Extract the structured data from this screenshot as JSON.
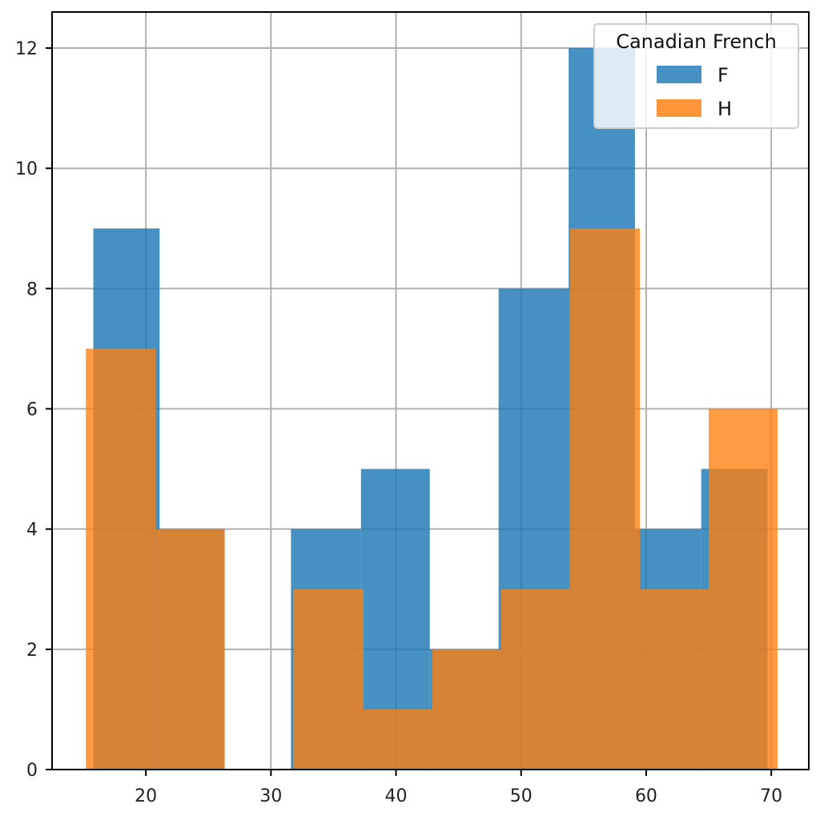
{
  "chart_data": {
    "type": "bar",
    "title": "",
    "xlabel": "",
    "ylabel": "",
    "xlim": [
      12.5,
      73
    ],
    "ylim": [
      0,
      12.6
    ],
    "xticks": [
      20,
      30,
      40,
      50,
      60,
      70
    ],
    "yticks": [
      0,
      2,
      4,
      6,
      8,
      10,
      12
    ],
    "grid": true,
    "legend": {
      "title": "Canadian French",
      "placement": "top-right"
    },
    "series": [
      {
        "name": "F",
        "color": "#1f77b4",
        "bins": [
          {
            "x0": 15.8,
            "x1": 21.1,
            "value": 9
          },
          {
            "x0": 21.1,
            "x1": 26.3,
            "value": 4
          },
          {
            "x0": 26.3,
            "x1": 31.6,
            "value": 0
          },
          {
            "x0": 31.6,
            "x1": 37.2,
            "value": 4
          },
          {
            "x0": 37.2,
            "x1": 42.7,
            "value": 5
          },
          {
            "x0": 42.7,
            "x1": 48.2,
            "value": 2
          },
          {
            "x0": 48.2,
            "x1": 53.8,
            "value": 8
          },
          {
            "x0": 53.8,
            "x1": 59.1,
            "value": 12
          },
          {
            "x0": 59.1,
            "x1": 64.4,
            "value": 4
          },
          {
            "x0": 64.4,
            "x1": 69.7,
            "value": 5
          }
        ]
      },
      {
        "name": "H",
        "color": "#ff7f0e",
        "bins": [
          {
            "x0": 15.2,
            "x1": 20.8,
            "value": 7
          },
          {
            "x0": 20.8,
            "x1": 26.3,
            "value": 4
          },
          {
            "x0": 26.3,
            "x1": 31.8,
            "value": 0
          },
          {
            "x0": 31.8,
            "x1": 37.4,
            "value": 3
          },
          {
            "x0": 37.4,
            "x1": 42.9,
            "value": 1
          },
          {
            "x0": 42.9,
            "x1": 48.4,
            "value": 2
          },
          {
            "x0": 48.4,
            "x1": 53.9,
            "value": 3
          },
          {
            "x0": 53.9,
            "x1": 59.5,
            "value": 9
          },
          {
            "x0": 59.5,
            "x1": 65.0,
            "value": 3
          },
          {
            "x0": 65.0,
            "x1": 70.5,
            "value": 6
          }
        ]
      }
    ]
  }
}
